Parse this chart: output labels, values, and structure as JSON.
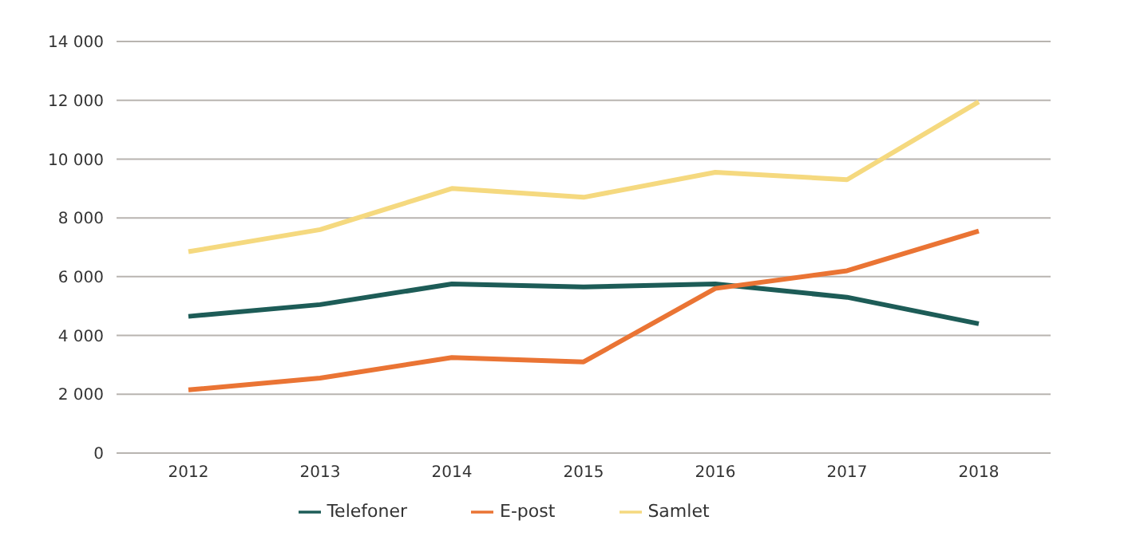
{
  "chart_data": {
    "type": "line",
    "categories": [
      "2012",
      "2013",
      "2014",
      "2015",
      "2016",
      "2017",
      "2018"
    ],
    "series": [
      {
        "name": "Telefoner",
        "color": "#1d5c57",
        "values": [
          4650,
          5050,
          5750,
          5650,
          5750,
          5300,
          4400
        ]
      },
      {
        "name": "E-post",
        "color": "#ea7434",
        "values": [
          2150,
          2550,
          3250,
          3100,
          5600,
          6200,
          7550
        ]
      },
      {
        "name": "Samlet",
        "color": "#f5d97f",
        "values": [
          6850,
          7600,
          9000,
          8700,
          9550,
          9300,
          11950
        ]
      }
    ],
    "ylim": [
      0,
      14000
    ],
    "yticks": [
      {
        "value": 0,
        "label": "0"
      },
      {
        "value": 2000,
        "label": "2 000"
      },
      {
        "value": 4000,
        "label": "4 000"
      },
      {
        "value": 6000,
        "label": "6 000"
      },
      {
        "value": 8000,
        "label": "8 000"
      },
      {
        "value": 10000,
        "label": "10 000"
      },
      {
        "value": 12000,
        "label": "12 000"
      },
      {
        "value": 14000,
        "label": "14 000"
      }
    ],
    "grid": "y",
    "legend": "bottom",
    "marker": "none",
    "line_style": "solid"
  }
}
